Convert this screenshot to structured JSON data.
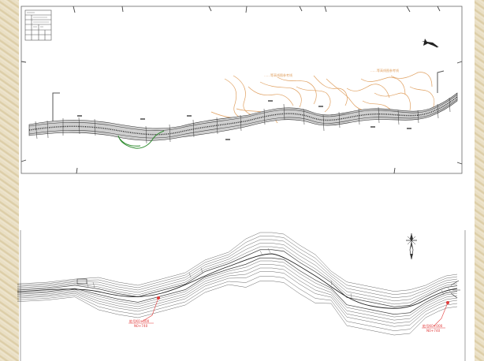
{
  "top_drawing": {
    "title_block": {
      "rows": 6,
      "cols": 4
    },
    "contour_labels": [
      "……等高线图参考线",
      "……等高线图参考线"
    ],
    "north_arrow": "north-arrow-icon"
  },
  "bottom_drawing": {
    "callouts": [
      {
        "lines": [
          "桩号K0+000",
          "N0+740"
        ]
      },
      {
        "lines": [
          "桩号K0+000",
          "N0+740"
        ]
      }
    ],
    "north_arrow": "compass-rose-icon"
  },
  "colors": {
    "linework": "#3a3a3a",
    "contour": "#e0a060",
    "highlight_green": "#2e8b2e",
    "callout_red": "#e23b3b",
    "frame": "#555555"
  }
}
